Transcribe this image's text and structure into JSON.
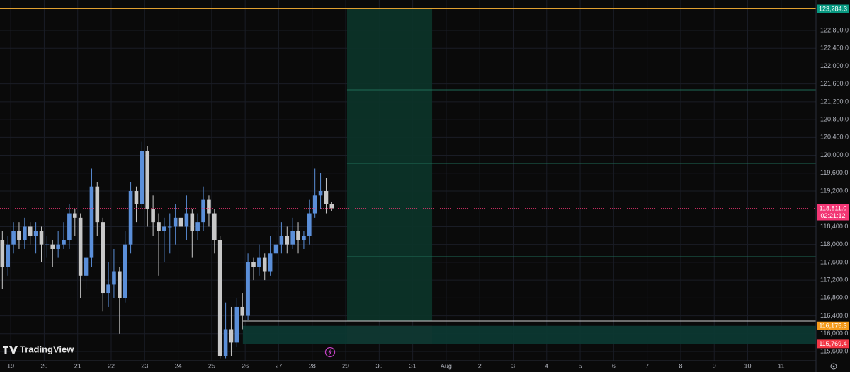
{
  "chart_data": {
    "type": "candlestick",
    "logo": "TradingView",
    "up_color": "#5b8fd9",
    "down_color": "#c8c8c8",
    "grid": true,
    "xlim": [
      18.68,
      43.04
    ],
    "ylim": [
      115394,
      123482
    ],
    "xticks": [
      19,
      20,
      21,
      22,
      23,
      24,
      25,
      26,
      27,
      28,
      29,
      30,
      31,
      {
        "value": 32,
        "label": "Aug"
      },
      {
        "value": 33,
        "label": "2"
      },
      {
        "value": 34,
        "label": "3"
      },
      {
        "value": 35,
        "label": "4"
      },
      {
        "value": 36,
        "label": "5"
      },
      {
        "value": 37,
        "label": "6"
      },
      {
        "value": 38,
        "label": "7"
      },
      {
        "value": 39,
        "label": "8"
      },
      {
        "value": 40,
        "label": "9"
      },
      {
        "value": 41,
        "label": "10"
      },
      {
        "value": 42,
        "label": "11"
      }
    ],
    "yticks": [
      {
        "value": 115600,
        "label": "115,600.0"
      },
      {
        "value": 116000,
        "label": "116,000.0"
      },
      {
        "value": 116400,
        "label": "116,400.0"
      },
      {
        "value": 116800,
        "label": "116,800.0"
      },
      {
        "value": 117200,
        "label": "117,200.0"
      },
      {
        "value": 117600,
        "label": "117,600.0"
      },
      {
        "value": 118000,
        "label": "118,000.0"
      },
      {
        "value": 118400,
        "label": "118,400.0"
      },
      {
        "value": 119200,
        "label": "119,200.0"
      },
      {
        "value": 119600,
        "label": "119,600.0"
      },
      {
        "value": 120000,
        "label": "120,000.0"
      },
      {
        "value": 120400,
        "label": "120,400.0"
      },
      {
        "value": 120800,
        "label": "120,800.0"
      },
      {
        "value": 121200,
        "label": "121,200.0"
      },
      {
        "value": 121600,
        "label": "121,600.0"
      },
      {
        "value": 122000,
        "label": "122,000.0"
      },
      {
        "value": 122400,
        "label": "122,400.0"
      },
      {
        "value": 122800,
        "label": "122,800.0"
      }
    ],
    "x": [
      18.75,
      18.917,
      19.083,
      19.25,
      19.417,
      19.583,
      19.75,
      19.917,
      20.083,
      20.25,
      20.417,
      20.583,
      20.75,
      20.917,
      21.083,
      21.25,
      21.417,
      21.583,
      21.75,
      21.917,
      22.083,
      22.25,
      22.417,
      22.583,
      22.75,
      22.917,
      23.083,
      23.25,
      23.417,
      23.583,
      23.75,
      23.917,
      24.083,
      24.25,
      24.417,
      24.583,
      24.75,
      24.917,
      25.083,
      25.25,
      25.417,
      25.583,
      25.75,
      25.917,
      26.083,
      26.25,
      26.417,
      26.583,
      26.75,
      26.917,
      27.083,
      27.25,
      27.417,
      27.583,
      27.75,
      27.917,
      28.083,
      28.25,
      28.417,
      28.583
    ],
    "open": [
      118100,
      117500,
      118000,
      118300,
      118100,
      118400,
      118200,
      118300,
      118000,
      118000,
      117900,
      118000,
      118100,
      118700,
      118600,
      117300,
      117700,
      119300,
      118500,
      116900,
      117100,
      117400,
      116800,
      118000,
      119200,
      118900,
      120100,
      118800,
      118500,
      118300,
      118400,
      118400,
      118600,
      118400,
      118700,
      118300,
      118500,
      119000,
      118700,
      118100,
      115500,
      116100,
      115800,
      116600,
      116400,
      117600,
      117500,
      117700,
      117400,
      117800,
      118000,
      118200,
      118000,
      118300,
      118100,
      118200,
      118700,
      119100,
      119200,
      118900
    ],
    "high": [
      118300,
      118200,
      118500,
      118500,
      118600,
      118500,
      118500,
      118400,
      118200,
      118100,
      118300,
      118500,
      118900,
      118800,
      118700,
      117900,
      119700,
      119400,
      118600,
      117600,
      117900,
      117500,
      118300,
      119400,
      119300,
      120300,
      120200,
      119100,
      118700,
      118600,
      118700,
      118900,
      119000,
      119100,
      118800,
      118700,
      119300,
      119100,
      118800,
      118200,
      116700,
      116600,
      116800,
      116900,
      117800,
      117700,
      118000,
      117800,
      118200,
      118300,
      118500,
      118400,
      118600,
      118500,
      118300,
      119000,
      119700,
      119600,
      119500,
      118950
    ],
    "low": [
      117000,
      117300,
      117800,
      117900,
      117900,
      118000,
      117800,
      117600,
      117700,
      117500,
      117700,
      117900,
      117900,
      118200,
      116800,
      117000,
      117500,
      118200,
      116500,
      116600,
      116800,
      116000,
      116700,
      117800,
      118500,
      118800,
      118400,
      118200,
      117300,
      117600,
      117800,
      118000,
      117500,
      118100,
      117700,
      118100,
      118300,
      118400,
      117800,
      115450,
      115450,
      115500,
      115700,
      116100,
      116300,
      117200,
      117300,
      117200,
      117300,
      117600,
      117800,
      117800,
      117900,
      117800,
      117900,
      118000,
      118600,
      118800,
      118700,
      118750
    ],
    "close": [
      117500,
      118000,
      118300,
      118100,
      118400,
      118200,
      118300,
      118000,
      118000,
      117900,
      118000,
      118100,
      118700,
      118600,
      117300,
      117700,
      119300,
      118500,
      116900,
      117100,
      117400,
      116800,
      118000,
      119200,
      118900,
      120100,
      118800,
      118500,
      118300,
      118400,
      118400,
      118600,
      118400,
      118700,
      118300,
      118500,
      119000,
      118700,
      118100,
      115500,
      116100,
      115800,
      116600,
      116400,
      117600,
      117500,
      117700,
      117400,
      117800,
      118000,
      118200,
      118000,
      118300,
      118100,
      118200,
      118700,
      119100,
      119200,
      118900,
      118811
    ],
    "zones": [
      {
        "x": [
          29.04,
          31.58
        ],
        "y": [
          116283,
          123284.3
        ],
        "color": "#0b3429"
      },
      {
        "x": [
          29.04,
          31.58
        ],
        "y": [
          115769.4,
          116175.3
        ],
        "color": "#3a1c1e"
      },
      {
        "x": [
          25.93,
          43.04
        ],
        "y": [
          115769.4,
          116175.3
        ],
        "color": "#0b3a33"
      }
    ],
    "lines": [
      {
        "value": 123284.3,
        "x": [
          18.68,
          43.04
        ],
        "color": "#e0a030"
      },
      {
        "value": 121468,
        "x": [
          29.04,
          43.04
        ],
        "color": "#1f6b55"
      },
      {
        "value": 119819,
        "x": [
          29.04,
          43.04
        ],
        "color": "#1f6b55"
      },
      {
        "value": 117725,
        "x": [
          29.04,
          43.04
        ],
        "color": "#1f6b55"
      },
      {
        "value": 116283,
        "x": [
          25.93,
          43.04
        ],
        "color": "#d0d0d0"
      }
    ],
    "last_price": {
      "value": 118811,
      "label": "118,811.0",
      "color": "#f23674"
    },
    "countdown": "02:21:12",
    "price_labels": [
      {
        "value": 123284.3,
        "label": "123,284.3",
        "color": "#089981"
      },
      {
        "value": 116175.3,
        "label": "116,175.3",
        "color": "#f59a1b"
      },
      {
        "value": 115769.4,
        "label": "115,769.4",
        "color": "#f23645"
      }
    ]
  }
}
